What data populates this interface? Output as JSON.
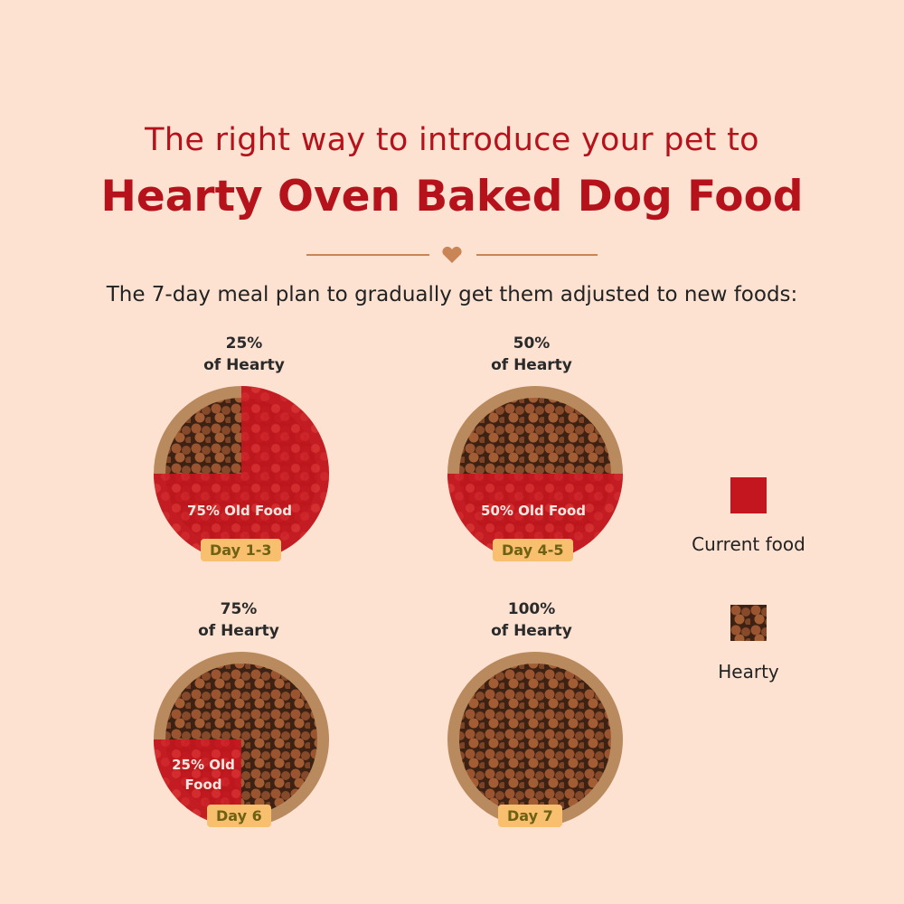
{
  "header": {
    "line1": "The right way to introduce your pet to",
    "line2": "Hearty Oven Baked Dog Food",
    "subtitle": "The 7-day meal plan to gradually get them adjusted to new foods:"
  },
  "colors": {
    "background": "#fde2d2",
    "accent": "#b5121b",
    "kibble": "#8a4a28",
    "badge": "#f8c06e",
    "divider": "#c98556"
  },
  "steps": [
    {
      "pct": "25%",
      "of": "of Hearty",
      "old": "75% Old Food",
      "day": "Day 1-3",
      "hearty_fraction": 0.25
    },
    {
      "pct": "50%",
      "of": "of Hearty",
      "old": "50% Old Food",
      "day": "Day 4-5",
      "hearty_fraction": 0.5
    },
    {
      "pct": "75%",
      "of": "of Hearty",
      "old_a": "25% Old",
      "old_b": "Food",
      "day": "Day 6",
      "hearty_fraction": 0.75
    },
    {
      "pct": "100%",
      "of": "of Hearty",
      "day": "Day 7",
      "hearty_fraction": 1.0
    }
  ],
  "legend": {
    "current": "Current food",
    "hearty": "Hearty"
  }
}
